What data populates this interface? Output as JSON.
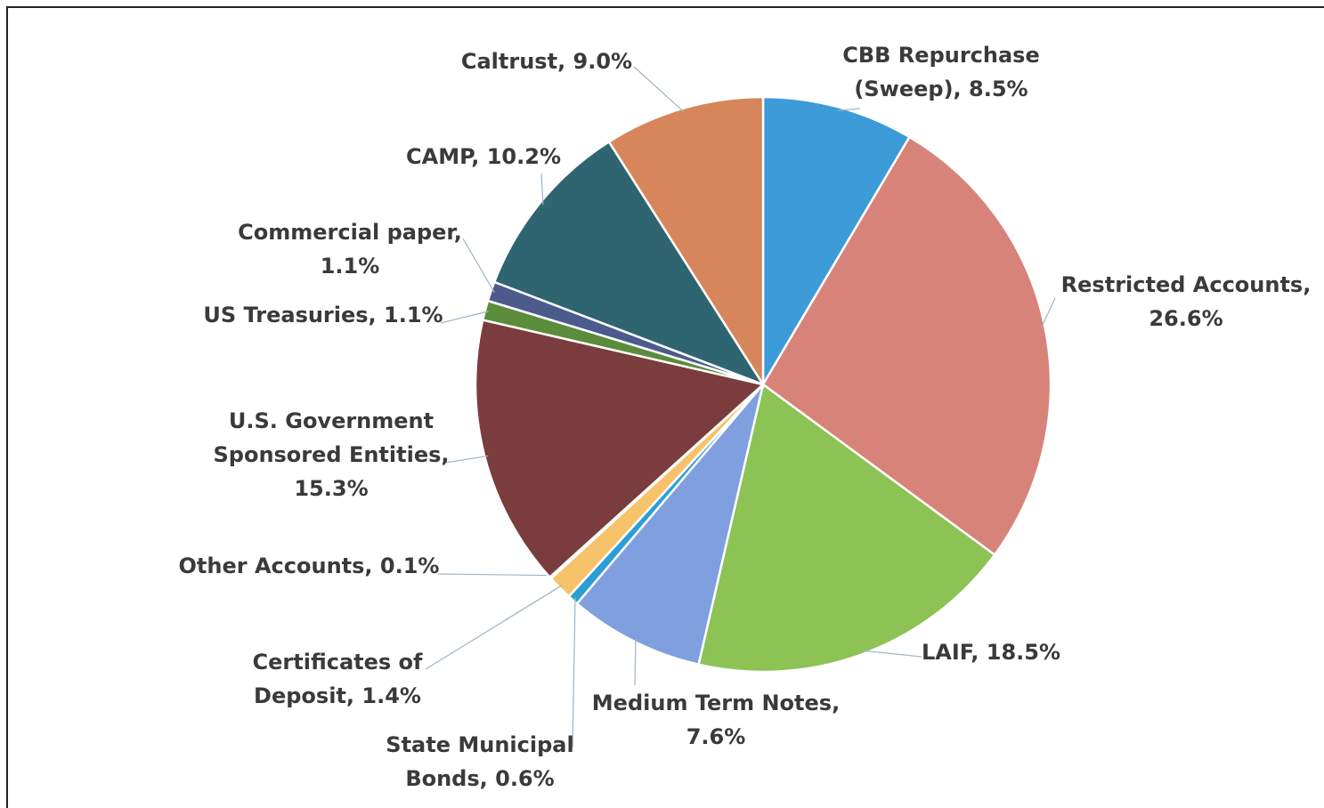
{
  "chart_data": {
    "type": "pie",
    "values": [
      8.5,
      26.6,
      18.5,
      7.6,
      0.6,
      1.4,
      0.1,
      15.3,
      1.1,
      1.1,
      10.2,
      9.0
    ],
    "value_labels": [
      [
        "CBB Repurchase",
        "(Sweep), 8.5%"
      ],
      [
        "Restricted Accounts,",
        "26.6%"
      ],
      [
        "LAIF, 18.5%"
      ],
      [
        "Medium Term Notes,",
        "7.6%"
      ],
      [
        "State Municipal",
        "Bonds, 0.6%"
      ],
      [
        "Certificates of",
        "Deposit, 1.4%"
      ],
      [
        "Other Accounts, 0.1%"
      ],
      [
        "U.S. Government",
        "Sponsored Entities,",
        "15.3%"
      ],
      [
        "US Treasuries, 1.1%"
      ],
      [
        "Commercial paper,",
        "1.1%"
      ],
      [
        "CAMP, 10.2%"
      ],
      [
        "Caltrust, 9.0%"
      ]
    ],
    "colors": [
      "#3d9bd8",
      "#d8837a",
      "#8dc255",
      "#7f9fdf",
      "#2a9fd6",
      "#f6c36a",
      "#ece4d2",
      "#7a3c3c",
      "#5b8c3c",
      "#4c5b8c",
      "#2f6571",
      "#d7865b"
    ]
  }
}
